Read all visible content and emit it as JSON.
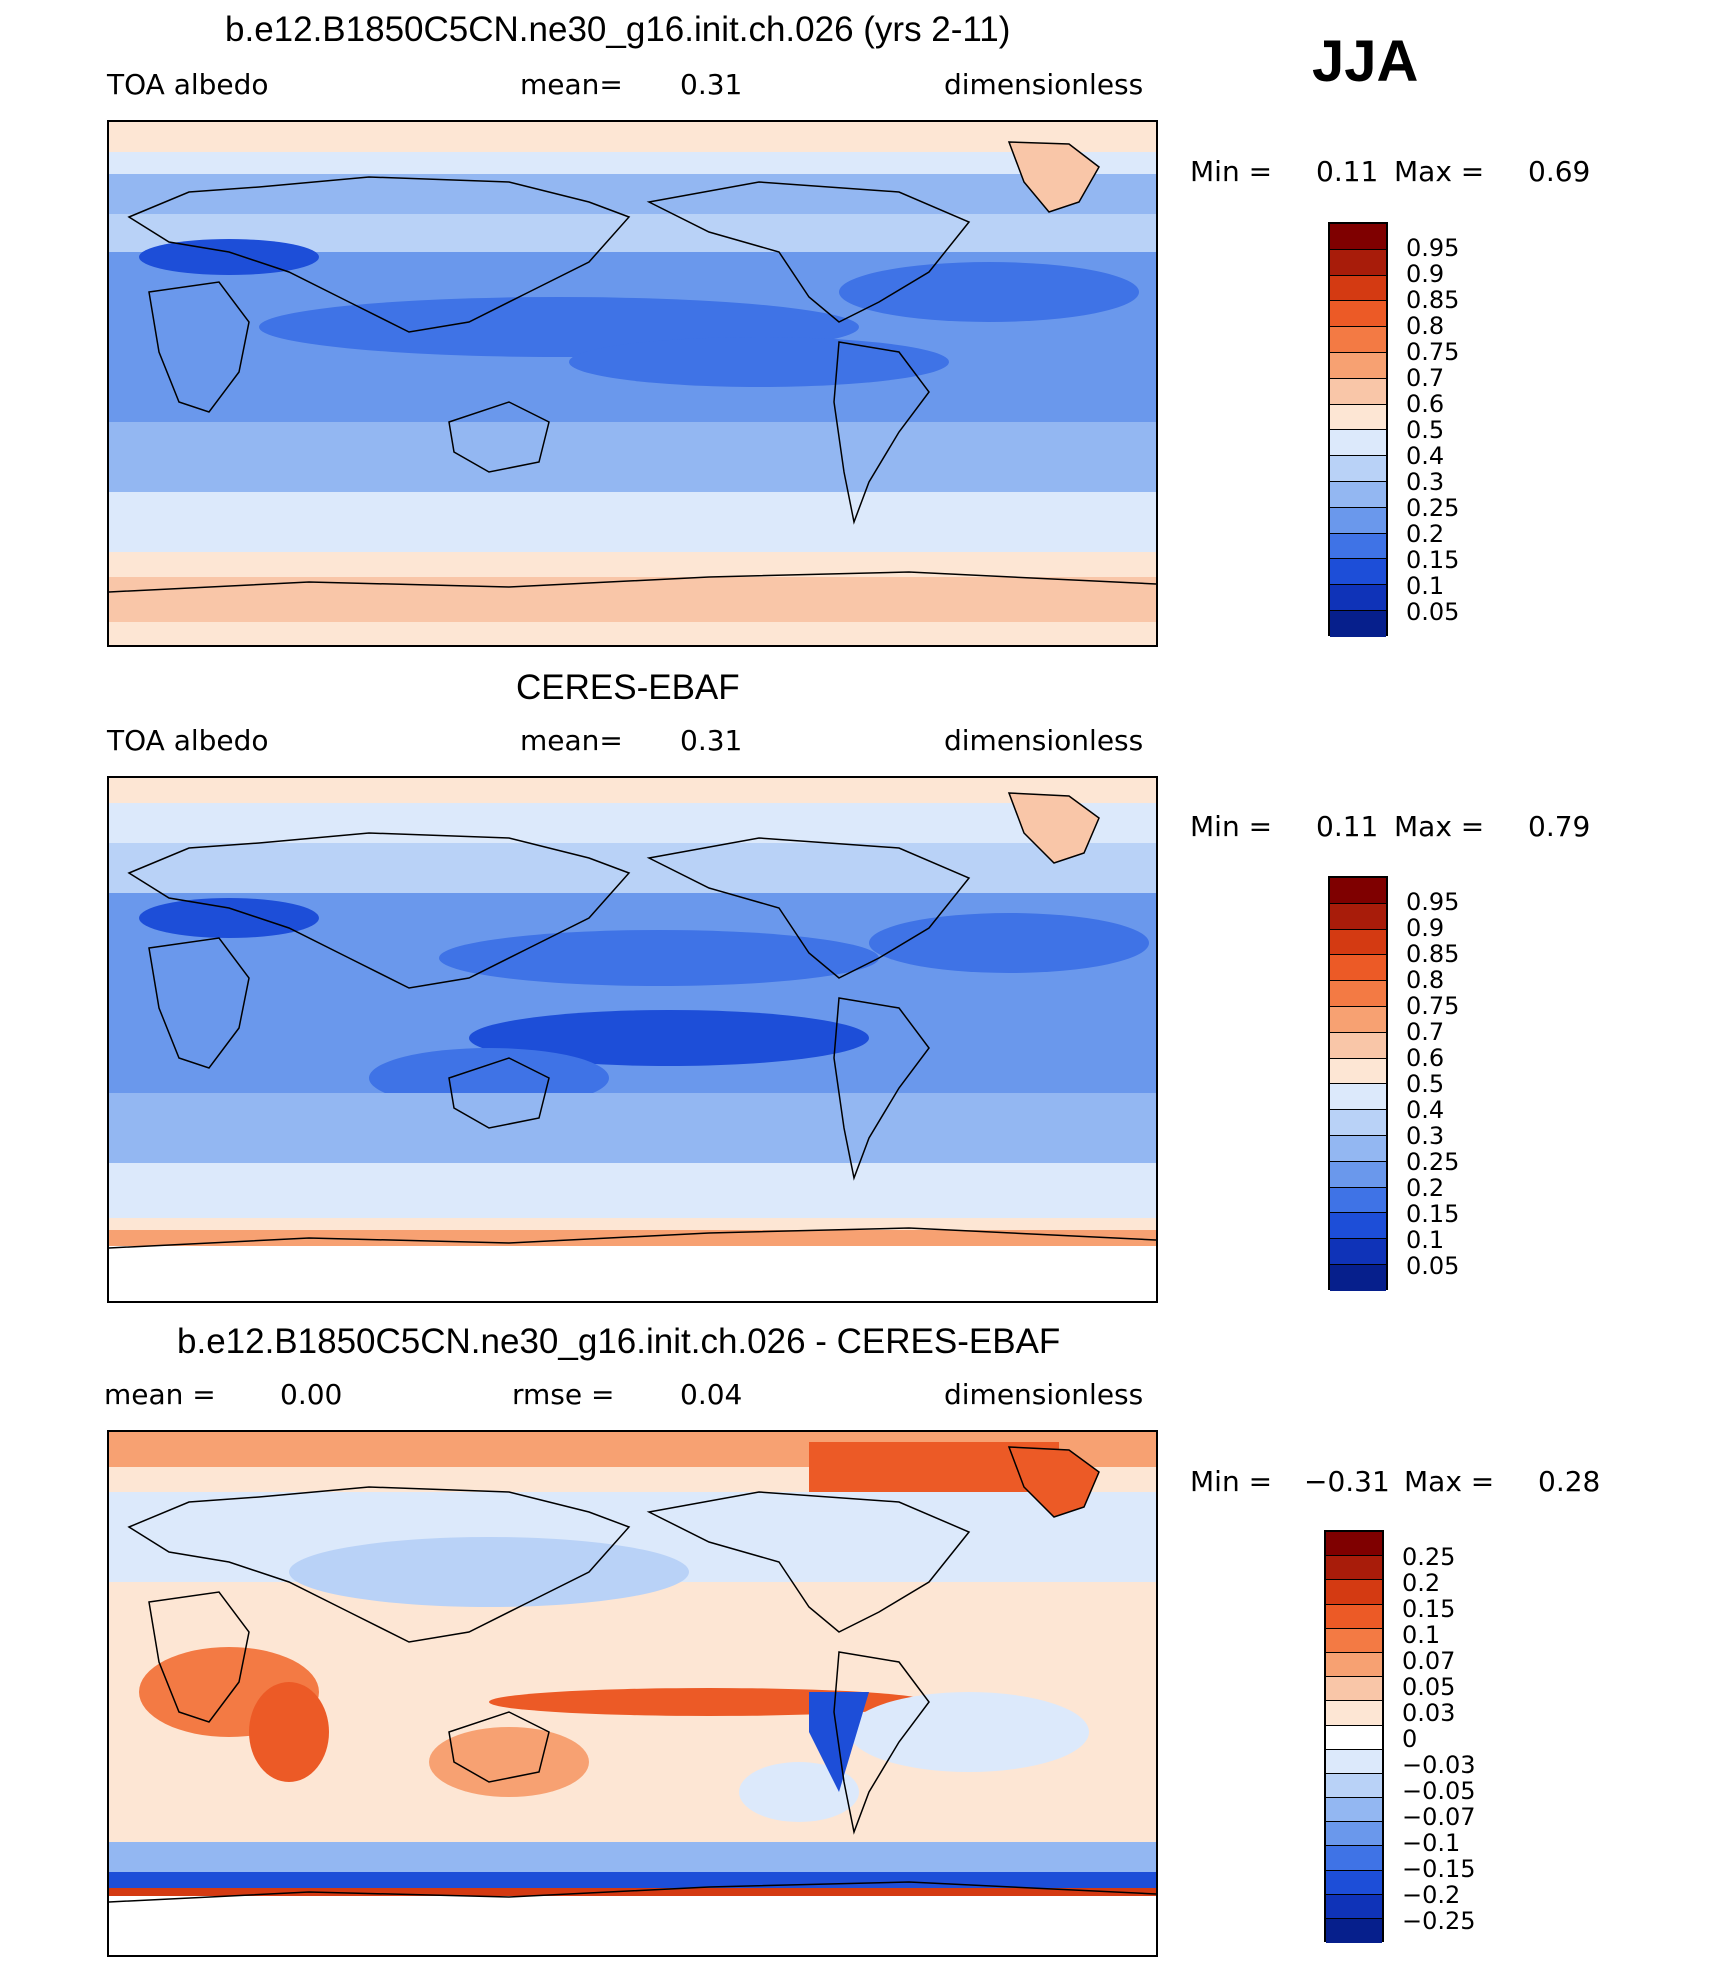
{
  "season": "JJA",
  "panels": [
    {
      "title": "b.e12.B1850C5CN.ne30_g16.init.ch.026 (yrs 2-11)",
      "left_label": "TOA  albedo",
      "center_label": "mean=",
      "center_value": "0.31",
      "right_label": "dimensionless",
      "min_label": "Min  =",
      "min_value": "0.11",
      "max_label": "Max  =",
      "max_value": "0.69",
      "colorbar": [
        "0.95",
        "0.9",
        "0.85",
        "0.8",
        "0.75",
        "0.7",
        "0.6",
        "0.5",
        "0.4",
        "0.3",
        "0.25",
        "0.2",
        "0.15",
        "0.1",
        "0.05"
      ]
    },
    {
      "title": "CERES-EBAF",
      "left_label": "TOA  albedo",
      "center_label": "mean=",
      "center_value": "0.31",
      "right_label": "dimensionless",
      "min_label": "Min  =",
      "min_value": "0.11",
      "max_label": "Max  =",
      "max_value": "0.79",
      "colorbar": [
        "0.95",
        "0.9",
        "0.85",
        "0.8",
        "0.75",
        "0.7",
        "0.6",
        "0.5",
        "0.4",
        "0.3",
        "0.25",
        "0.2",
        "0.15",
        "0.1",
        "0.05"
      ]
    },
    {
      "title": "b.e12.B1850C5CN.ne30_g16.init.ch.026 - CERES-EBAF",
      "left_label": "mean  =",
      "left_value": "0.00",
      "center_label": "rmse  =",
      "center_value": "0.04",
      "right_label": "dimensionless",
      "min_label": "Min  =",
      "min_value": "−0.31",
      "max_label": "Max  =",
      "max_value": "0.28",
      "colorbar": [
        "0.25",
        "0.2",
        "0.15",
        "0.1",
        "0.07",
        "0.05",
        "0.03",
        "0",
        "−0.03",
        "−0.05",
        "−0.07",
        "−0.1",
        "−0.15",
        "−0.2",
        "−0.25"
      ]
    }
  ],
  "colors": {
    "abs_scale": [
      "#7f0000",
      "#a81c0a",
      "#d43a12",
      "#ec5a26",
      "#f37a44",
      "#f7a172",
      "#f9c6a8",
      "#fde6d4",
      "#dce9fb",
      "#b9d2f7",
      "#93b7f2",
      "#6a98ec",
      "#3f73e6",
      "#1d4ed8",
      "#0f33b8",
      "#061f8c"
    ],
    "diff_scale": [
      "#7f0000",
      "#a81c0a",
      "#d43a12",
      "#ec5a26",
      "#f37a44",
      "#f7a172",
      "#f9c6a8",
      "#fde6d4",
      "#ffffff",
      "#dce9fb",
      "#b9d2f7",
      "#93b7f2",
      "#6a98ec",
      "#3f73e6",
      "#1d4ed8",
      "#0f33b8",
      "#061f8c"
    ]
  }
}
